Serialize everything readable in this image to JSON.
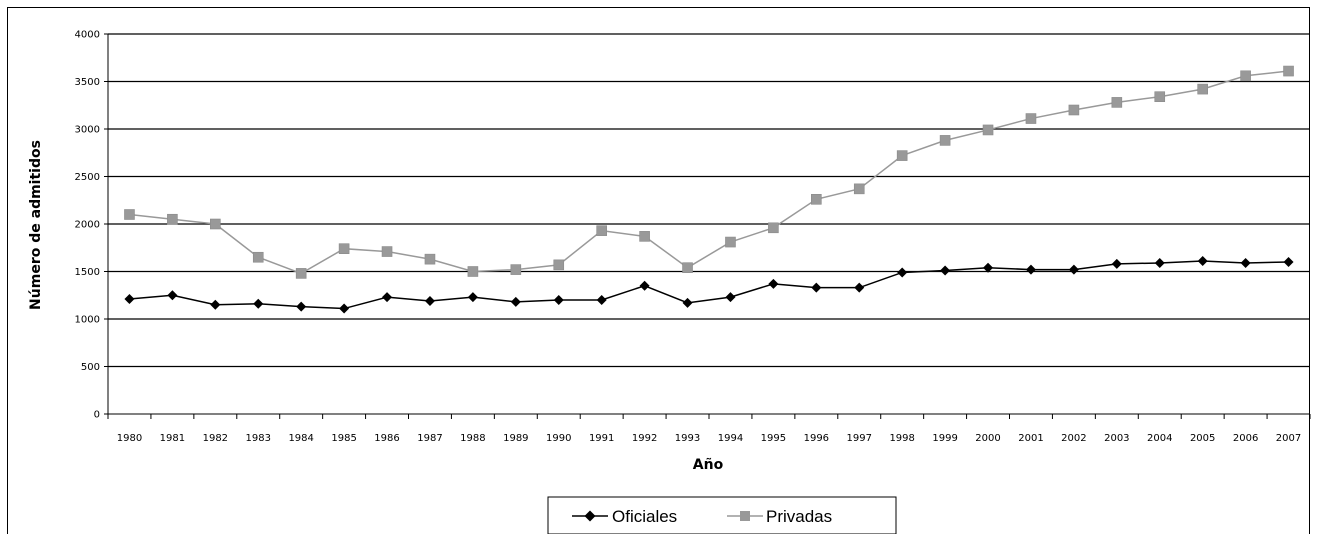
{
  "chart_data": {
    "type": "line",
    "title": "",
    "xlabel": "Año",
    "ylabel": "Número de admitidos",
    "ylim": [
      0,
      4000
    ],
    "yticks": [
      0,
      500,
      1000,
      1500,
      2000,
      2500,
      3000,
      3500,
      4000
    ],
    "grid": true,
    "legend": "bottom",
    "categories": [
      "1980",
      "1981",
      "1982",
      "1983",
      "1984",
      "1985",
      "1986",
      "1987",
      "1988",
      "1989",
      "1990",
      "1991",
      "1992",
      "1993",
      "1994",
      "1995",
      "1996",
      "1997",
      "1998",
      "1999",
      "2000",
      "2001",
      "2002",
      "2003",
      "2004",
      "2005",
      "2006",
      "2007"
    ],
    "series": [
      {
        "name": "Oficiales",
        "color": "#000000",
        "marker": "diamond",
        "values": [
          1210,
          1250,
          1150,
          1160,
          1130,
          1110,
          1230,
          1190,
          1230,
          1180,
          1200,
          1200,
          1350,
          1170,
          1230,
          1370,
          1330,
          1330,
          1490,
          1510,
          1540,
          1520,
          1520,
          1580,
          1590,
          1610,
          1590,
          1600
        ]
      },
      {
        "name": "Privadas",
        "color": "#999999",
        "marker": "square",
        "values": [
          2100,
          2050,
          2000,
          1650,
          1480,
          1740,
          1710,
          1630,
          1500,
          1520,
          1570,
          1930,
          1870,
          1540,
          1810,
          1960,
          2260,
          2370,
          2720,
          2880,
          2990,
          3110,
          3200,
          3280,
          3340,
          3420,
          3560,
          3610
        ]
      }
    ]
  }
}
